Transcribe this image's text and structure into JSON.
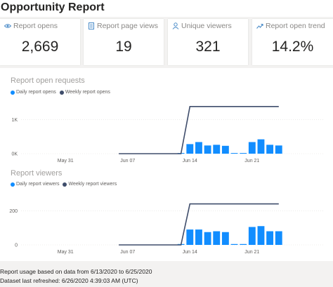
{
  "title": "Opportunity Report",
  "kpis": [
    {
      "label": "Report opens",
      "value": "2,669",
      "icon": "eye-icon"
    },
    {
      "label": "Report page views",
      "value": "19",
      "icon": "page-icon"
    },
    {
      "label": "Unique viewers",
      "value": "321",
      "icon": "person-icon"
    },
    {
      "label": "Report open trend",
      "value": "14.2%",
      "icon": "trend-icon"
    }
  ],
  "colors": {
    "daily": "#118dff",
    "weekly": "#3f4d6b",
    "accent": "#4a8bc8"
  },
  "chart_data": [
    {
      "type": "bar",
      "title": "Report open requests",
      "legend": [
        "Daily report opens",
        "Weekly report opens"
      ],
      "x_ticks": [
        "May 31",
        "Jun 07",
        "Jun 14",
        "Jun 21"
      ],
      "y_ticks": [
        "1K",
        "0K"
      ],
      "ylim": [
        0,
        1500
      ],
      "daily": {
        "name": "Daily report opens",
        "x": [
          "6/13/2020",
          "6/14/2020",
          "6/15/2020",
          "6/16/2020",
          "6/17/2020",
          "6/18/2020",
          "6/19/2020",
          "6/20/2020",
          "6/21/2020",
          "6/22/2020",
          "6/23/2020",
          "6/24/2020",
          "6/25/2020"
        ],
        "values": [
          20,
          280,
          340,
          240,
          260,
          230,
          20,
          20,
          340,
          420,
          260,
          240,
          0
        ]
      },
      "weekly": {
        "name": "Weekly report opens",
        "x": [
          "6/6/2020",
          "6/13/2020",
          "6/14/2020",
          "6/24/2020"
        ],
        "values": [
          0,
          0,
          1380,
          1380
        ]
      }
    },
    {
      "type": "bar",
      "title": "Report viewers",
      "legend": [
        "Daily report viewers",
        "Weekly report viewers"
      ],
      "x_ticks": [
        "May 31",
        "Jun 07",
        "Jun 14",
        "Jun 21"
      ],
      "y_ticks": [
        "200",
        "0"
      ],
      "ylim": [
        0,
        300
      ],
      "daily": {
        "name": "Daily report viewers",
        "x": [
          "6/13/2020",
          "6/14/2020",
          "6/15/2020",
          "6/16/2020",
          "6/17/2020",
          "6/18/2020",
          "6/19/2020",
          "6/20/2020",
          "6/21/2020",
          "6/22/2020",
          "6/23/2020",
          "6/24/2020",
          "6/25/2020"
        ],
        "values": [
          5,
          90,
          90,
          75,
          80,
          75,
          5,
          5,
          105,
          110,
          80,
          80,
          0
        ]
      },
      "weekly": {
        "name": "Weekly report viewers",
        "x": [
          "6/6/2020",
          "6/13/2020",
          "6/14/2020",
          "6/24/2020"
        ],
        "values": [
          0,
          0,
          240,
          240
        ]
      }
    }
  ],
  "footer": {
    "usage": "Report usage based on data from 6/13/2020 to 6/25/2020",
    "refreshed": "Dataset last refreshed: 6/26/2020 4:39:03 AM (UTC)"
  }
}
